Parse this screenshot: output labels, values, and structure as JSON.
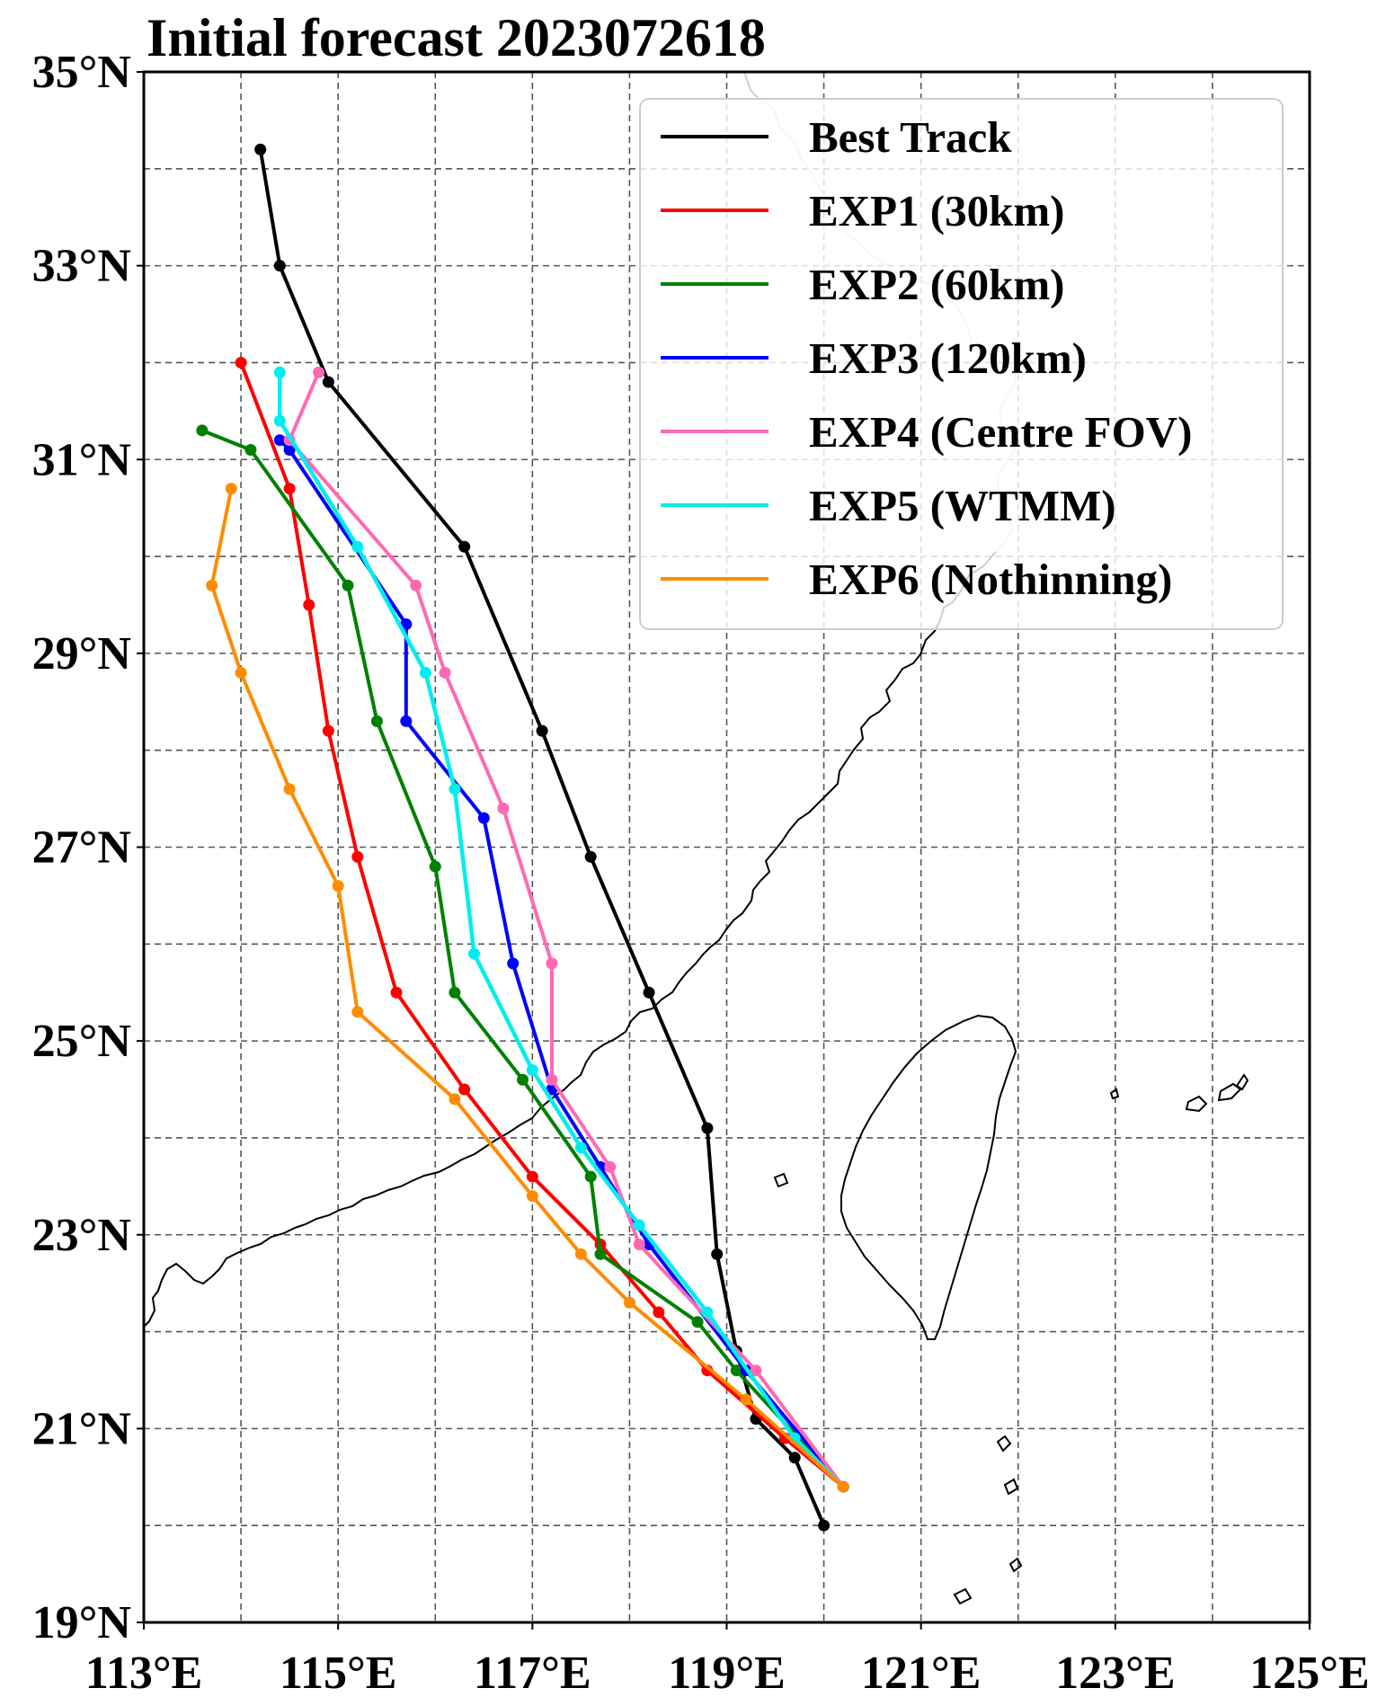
{
  "chart_data": {
    "type": "line",
    "title": "Initial forecast 2023072618",
    "xlabel": "",
    "ylabel": "",
    "xlim": [
      113,
      125
    ],
    "ylim": [
      19,
      35
    ],
    "x_ticks": [
      {
        "value": 113,
        "label": "113°E"
      },
      {
        "value": 115,
        "label": "115°E"
      },
      {
        "value": 117,
        "label": "117°E"
      },
      {
        "value": 119,
        "label": "119°E"
      },
      {
        "value": 121,
        "label": "121°E"
      },
      {
        "value": 123,
        "label": "123°E"
      },
      {
        "value": 125,
        "label": "125°E"
      }
    ],
    "y_ticks": [
      {
        "value": 19,
        "label": "19°N"
      },
      {
        "value": 21,
        "label": "21°N"
      },
      {
        "value": 23,
        "label": "23°N"
      },
      {
        "value": 25,
        "label": "25°N"
      },
      {
        "value": 27,
        "label": "27°N"
      },
      {
        "value": 29,
        "label": "29°N"
      },
      {
        "value": 31,
        "label": "31°N"
      },
      {
        "value": 33,
        "label": "33°N"
      },
      {
        "value": 35,
        "label": "35°N"
      }
    ],
    "grid": true,
    "legend_position": "top-right",
    "series": [
      {
        "name": "Best Track",
        "color": "#000000",
        "lon": [
          120.0,
          119.7,
          119.3,
          119.1,
          118.9,
          118.8,
          118.2,
          117.6,
          117.1,
          116.3,
          114.9,
          114.4,
          114.2
        ],
        "lat": [
          20.0,
          20.7,
          21.1,
          21.8,
          22.8,
          24.1,
          25.5,
          26.9,
          28.2,
          30.1,
          31.8,
          33.0,
          34.2
        ]
      },
      {
        "name": "EXP1 (30km)",
        "color": "#ff0000",
        "lon": [
          120.2,
          119.6,
          118.8,
          118.3,
          117.7,
          117.0,
          116.3,
          115.6,
          115.2,
          114.9,
          114.7,
          114.5,
          114.0
        ],
        "lat": [
          20.4,
          20.9,
          21.6,
          22.2,
          22.9,
          23.6,
          24.5,
          25.5,
          26.9,
          28.2,
          29.5,
          30.7,
          32.0
        ]
      },
      {
        "name": "EXP2 (60km)",
        "color": "#008000",
        "lon": [
          120.2,
          119.1,
          118.7,
          117.7,
          117.6,
          116.9,
          116.2,
          116.0,
          115.4,
          115.1,
          114.1,
          113.6
        ],
        "lat": [
          20.4,
          21.6,
          22.1,
          22.8,
          23.6,
          24.6,
          25.5,
          26.8,
          28.3,
          29.7,
          31.1,
          31.3
        ]
      },
      {
        "name": "EXP3 (120km)",
        "color": "#0000ff",
        "lon": [
          120.2,
          119.2,
          118.2,
          117.7,
          117.2,
          116.8,
          116.5,
          115.7,
          115.7,
          114.5,
          114.4
        ],
        "lat": [
          20.4,
          21.6,
          22.9,
          23.7,
          24.5,
          25.8,
          27.3,
          28.3,
          29.3,
          31.1,
          31.2
        ]
      },
      {
        "name": "EXP4 (Centre FOV)",
        "color": "#ff69b4",
        "lon": [
          120.2,
          119.3,
          118.1,
          117.8,
          117.2,
          117.2,
          116.7,
          116.1,
          115.8,
          114.5,
          114.8
        ],
        "lat": [
          20.4,
          21.6,
          22.9,
          23.7,
          24.6,
          25.8,
          27.4,
          28.8,
          29.7,
          31.2,
          31.9
        ]
      },
      {
        "name": "EXP5 (WTMM)",
        "color": "#00eeee",
        "lon": [
          120.2,
          119.7,
          118.8,
          118.1,
          117.5,
          117.0,
          116.4,
          116.2,
          115.9,
          115.2,
          114.4,
          114.4
        ],
        "lat": [
          20.4,
          20.9,
          22.2,
          23.1,
          23.9,
          24.7,
          25.9,
          27.6,
          28.8,
          30.1,
          31.4,
          31.9
        ]
      },
      {
        "name": "EXP6 (Nothinning)",
        "color": "#ff8c00",
        "lon": [
          120.2,
          119.2,
          118.0,
          117.5,
          117.0,
          116.2,
          115.2,
          115.0,
          114.5,
          114.0,
          113.7,
          113.9
        ],
        "lat": [
          20.4,
          21.3,
          22.3,
          22.8,
          23.4,
          24.4,
          25.3,
          26.6,
          27.6,
          28.8,
          29.7,
          30.7
        ]
      }
    ]
  }
}
